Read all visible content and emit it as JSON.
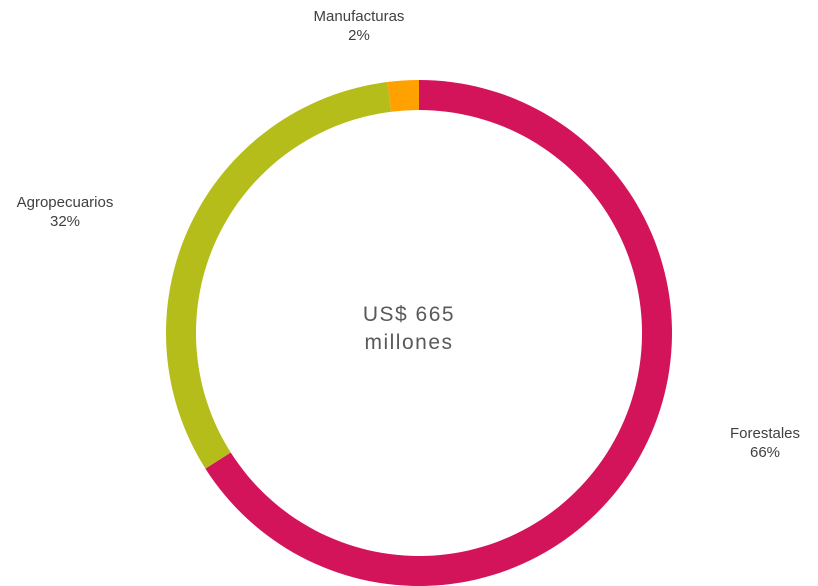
{
  "chart_data": {
    "type": "pie",
    "variant": "donut",
    "categories": [
      "Forestales",
      "Agropecuarios",
      "Manufacturas"
    ],
    "values": [
      66,
      32,
      2
    ],
    "unit": "%",
    "labels": [
      "66%",
      "32%",
      "2%"
    ],
    "colors": [
      "#d4145a",
      "#b5bd1a",
      "#ffa200"
    ],
    "center_text": [
      "US$ 665",
      "millones"
    ],
    "title": "",
    "legend": "none",
    "grid": false
  }
}
